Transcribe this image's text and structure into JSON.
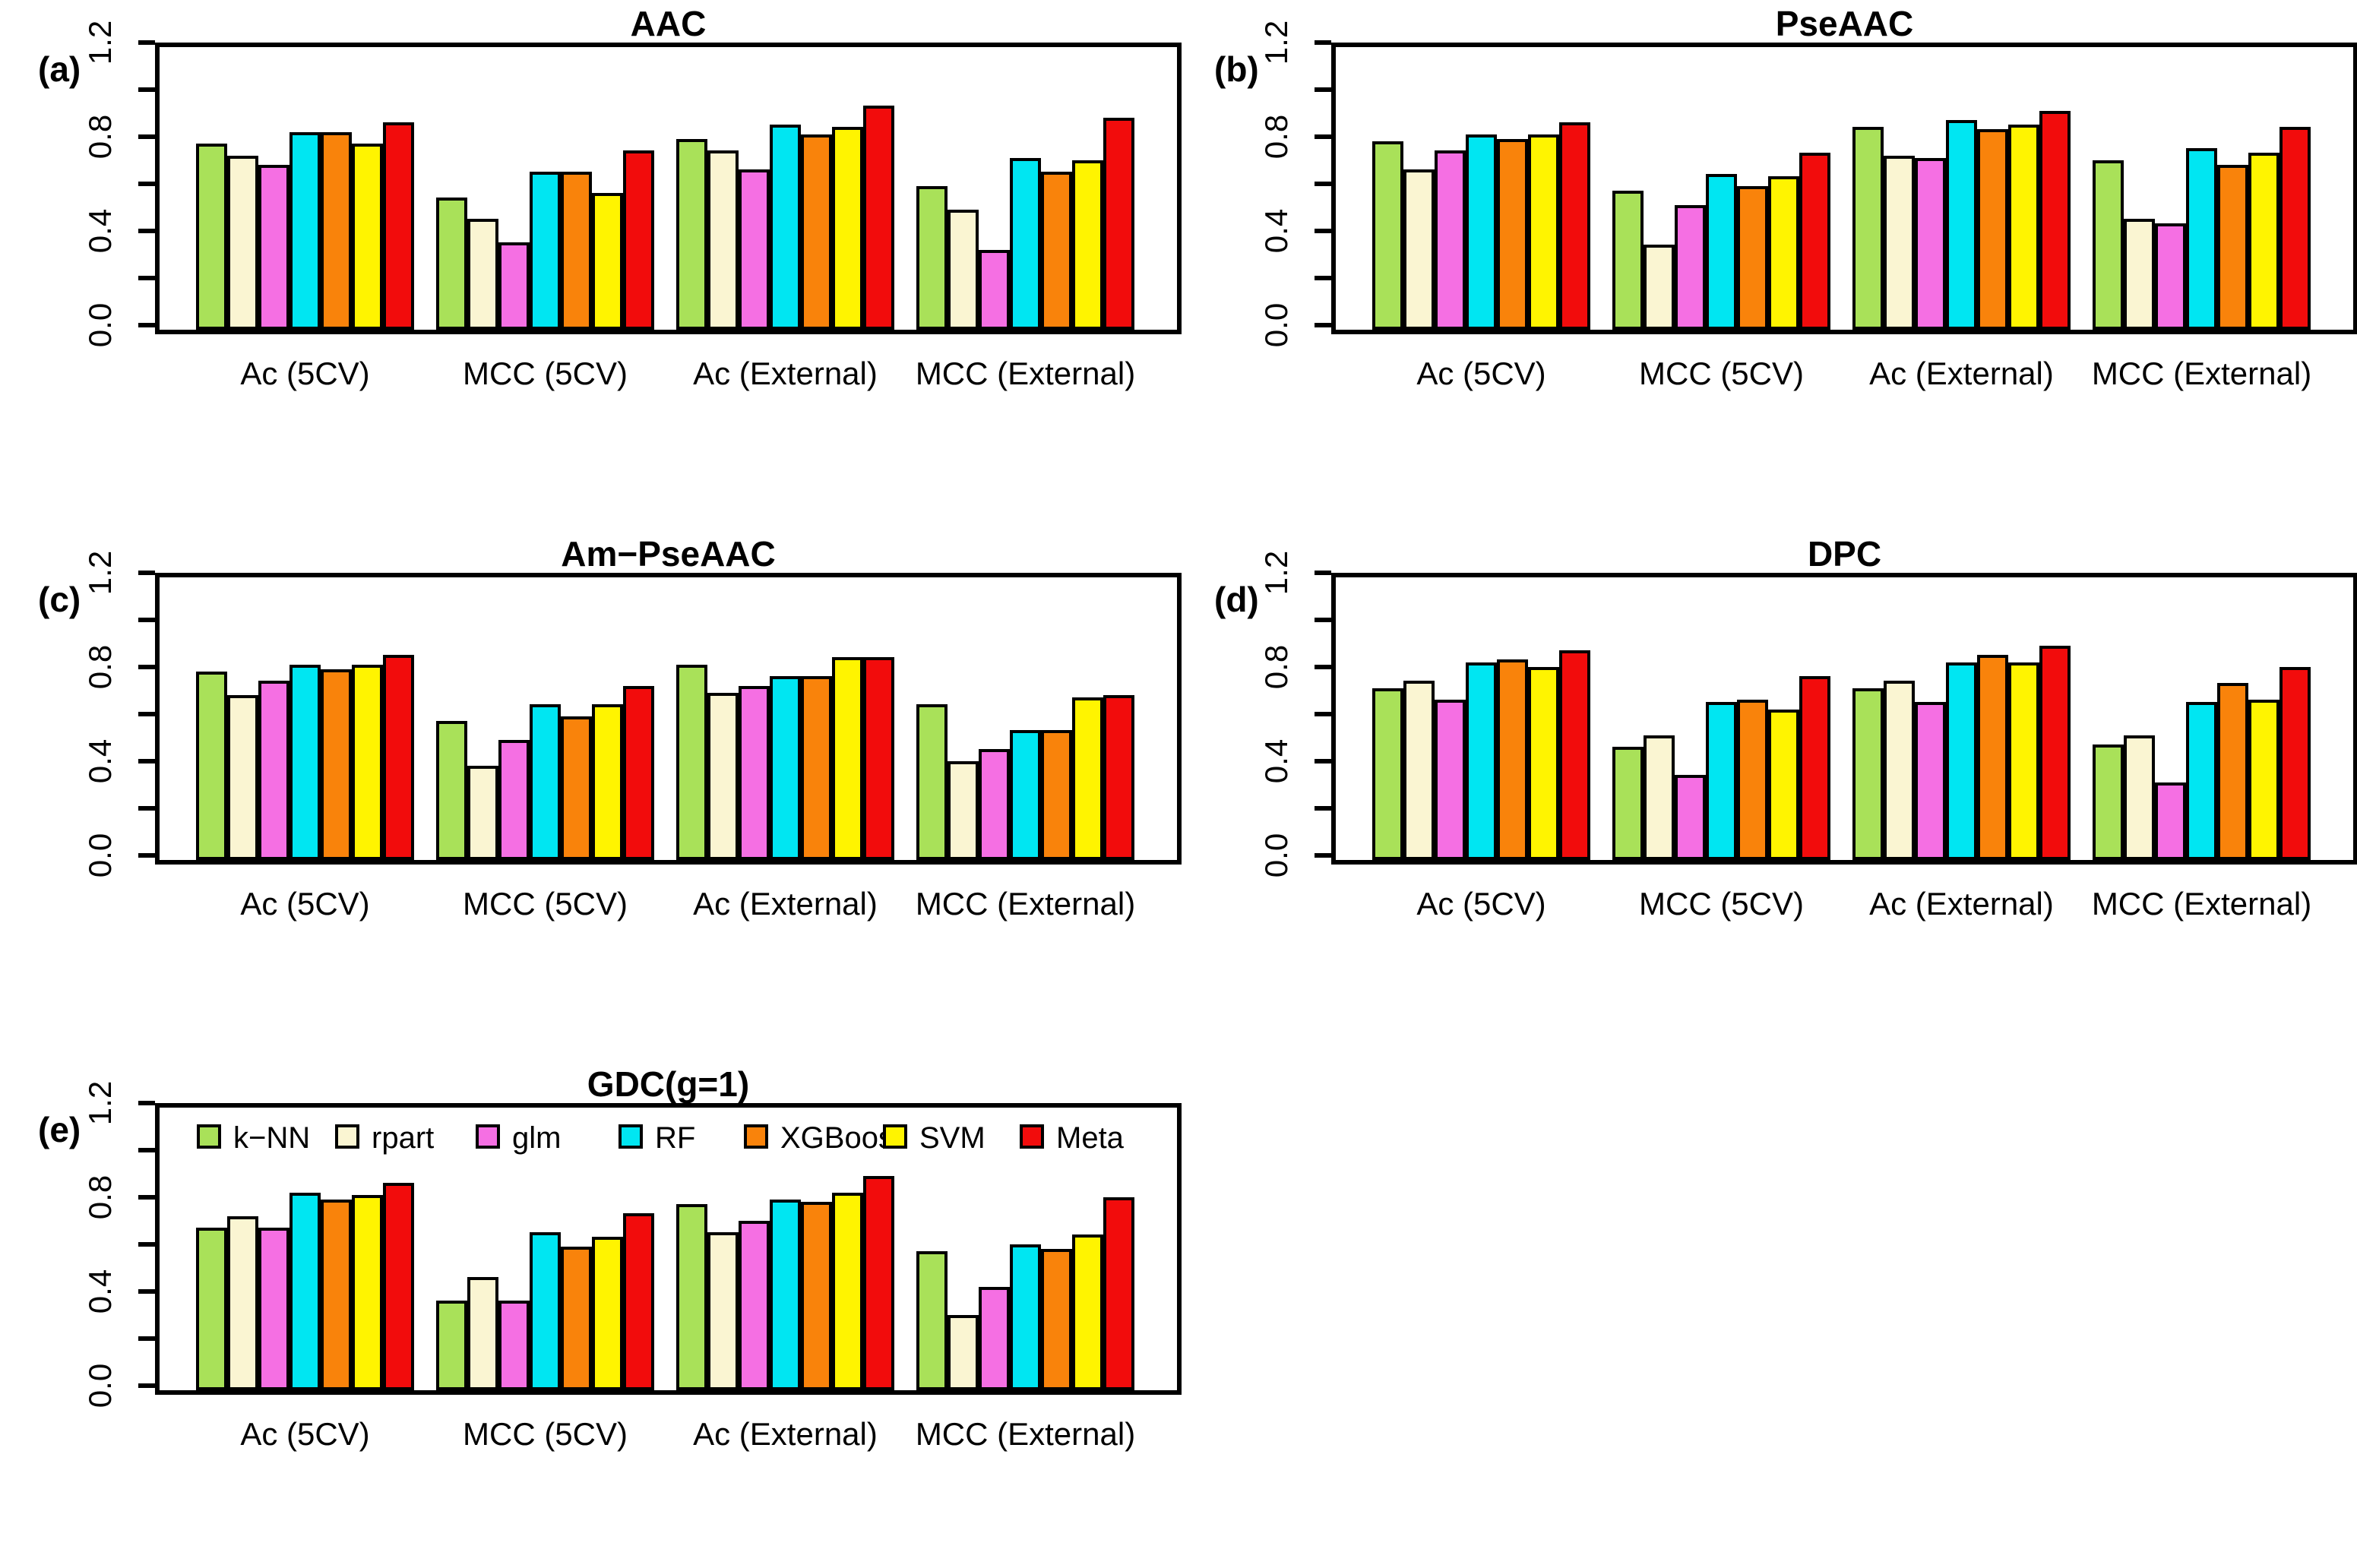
{
  "page": {
    "background": "#ffffff"
  },
  "legend": {
    "entries": [
      {
        "label": "k−NN",
        "color": "#A9E159"
      },
      {
        "label": "rpart",
        "color": "#FAF5D2"
      },
      {
        "label": "glm",
        "color": "#F56FE3"
      },
      {
        "label": "RF",
        "color": "#00E6F2"
      },
      {
        "label": "XGBoost",
        "color": "#F9830B"
      },
      {
        "label": "SVM",
        "color": "#FFF400"
      },
      {
        "label": "Meta",
        "color": "#F20C0C"
      }
    ]
  },
  "chart_data": [
    {
      "type": "bar",
      "panel_label": "(a)",
      "title": "AAC",
      "categories": [
        "Ac (5CV)",
        "MCC (5CV)",
        "Ac (External)",
        "MCC (External)"
      ],
      "ylim": [
        0,
        1.2
      ],
      "ytick_labels": [
        "0.0",
        "0.4",
        "0.8",
        "1.2"
      ],
      "grid": false,
      "legend": false,
      "series": [
        {
          "name": "k-NN",
          "color": "#A9E159",
          "values": [
            0.79,
            0.56,
            0.81,
            0.61
          ]
        },
        {
          "name": "rpart",
          "color": "#FAF5D2",
          "values": [
            0.74,
            0.47,
            0.76,
            0.51
          ]
        },
        {
          "name": "glm",
          "color": "#F56FE3",
          "values": [
            0.7,
            0.37,
            0.68,
            0.34
          ]
        },
        {
          "name": "RF",
          "color": "#00E6F2",
          "values": [
            0.84,
            0.67,
            0.87,
            0.73
          ]
        },
        {
          "name": "XGBoost",
          "color": "#F9830B",
          "values": [
            0.84,
            0.67,
            0.83,
            0.67
          ]
        },
        {
          "name": "SVM",
          "color": "#FFF400",
          "values": [
            0.79,
            0.58,
            0.86,
            0.72
          ]
        },
        {
          "name": "Meta",
          "color": "#F20C0C",
          "values": [
            0.88,
            0.76,
            0.95,
            0.9
          ]
        }
      ]
    },
    {
      "type": "bar",
      "panel_label": "(b)",
      "title": "PseAAC",
      "categories": [
        "Ac (5CV)",
        "MCC (5CV)",
        "Ac (External)",
        "MCC (External)"
      ],
      "ylim": [
        0,
        1.2
      ],
      "ytick_labels": [
        "0.0",
        "0.4",
        "0.8",
        "1.2"
      ],
      "grid": false,
      "legend": false,
      "series": [
        {
          "name": "k-NN",
          "color": "#A9E159",
          "values": [
            0.8,
            0.59,
            0.86,
            0.72
          ]
        },
        {
          "name": "rpart",
          "color": "#FAF5D2",
          "values": [
            0.68,
            0.36,
            0.74,
            0.47
          ]
        },
        {
          "name": "glm",
          "color": "#F56FE3",
          "values": [
            0.76,
            0.53,
            0.73,
            0.45
          ]
        },
        {
          "name": "RF",
          "color": "#00E6F2",
          "values": [
            0.83,
            0.66,
            0.89,
            0.77
          ]
        },
        {
          "name": "XGBoost",
          "color": "#F9830B",
          "values": [
            0.81,
            0.61,
            0.85,
            0.7
          ]
        },
        {
          "name": "SVM",
          "color": "#FFF400",
          "values": [
            0.83,
            0.65,
            0.87,
            0.75
          ]
        },
        {
          "name": "Meta",
          "color": "#F20C0C",
          "values": [
            0.88,
            0.75,
            0.93,
            0.86
          ]
        }
      ]
    },
    {
      "type": "bar",
      "panel_label": "(c)",
      "title": "Am−PseAAC",
      "categories": [
        "Ac (5CV)",
        "MCC (5CV)",
        "Ac (External)",
        "MCC (External)"
      ],
      "ylim": [
        0,
        1.2
      ],
      "ytick_labels": [
        "0.0",
        "0.4",
        "0.8",
        "1.2"
      ],
      "grid": false,
      "legend": false,
      "series": [
        {
          "name": "k-NN",
          "color": "#A9E159",
          "values": [
            0.8,
            0.59,
            0.83,
            0.66
          ]
        },
        {
          "name": "rpart",
          "color": "#FAF5D2",
          "values": [
            0.7,
            0.4,
            0.71,
            0.42
          ]
        },
        {
          "name": "glm",
          "color": "#F56FE3",
          "values": [
            0.76,
            0.51,
            0.74,
            0.47
          ]
        },
        {
          "name": "RF",
          "color": "#00E6F2",
          "values": [
            0.83,
            0.66,
            0.78,
            0.55
          ]
        },
        {
          "name": "XGBoost",
          "color": "#F9830B",
          "values": [
            0.81,
            0.61,
            0.78,
            0.55
          ]
        },
        {
          "name": "SVM",
          "color": "#FFF400",
          "values": [
            0.83,
            0.66,
            0.86,
            0.69
          ]
        },
        {
          "name": "Meta",
          "color": "#F20C0C",
          "values": [
            0.87,
            0.74,
            0.86,
            0.7
          ]
        }
      ]
    },
    {
      "type": "bar",
      "panel_label": "(d)",
      "title": "DPC",
      "categories": [
        "Ac (5CV)",
        "MCC (5CV)",
        "Ac (External)",
        "MCC (External)"
      ],
      "ylim": [
        0,
        1.2
      ],
      "ytick_labels": [
        "0.0",
        "0.4",
        "0.8",
        "1.2"
      ],
      "grid": false,
      "legend": false,
      "series": [
        {
          "name": "k-NN",
          "color": "#A9E159",
          "values": [
            0.73,
            0.48,
            0.73,
            0.49
          ]
        },
        {
          "name": "rpart",
          "color": "#FAF5D2",
          "values": [
            0.76,
            0.53,
            0.76,
            0.53
          ]
        },
        {
          "name": "glm",
          "color": "#F56FE3",
          "values": [
            0.68,
            0.36,
            0.67,
            0.33
          ]
        },
        {
          "name": "RF",
          "color": "#00E6F2",
          "values": [
            0.84,
            0.67,
            0.84,
            0.67
          ]
        },
        {
          "name": "XGBoost",
          "color": "#F9830B",
          "values": [
            0.85,
            0.68,
            0.87,
            0.75
          ]
        },
        {
          "name": "SVM",
          "color": "#FFF400",
          "values": [
            0.82,
            0.64,
            0.84,
            0.68
          ]
        },
        {
          "name": "Meta",
          "color": "#F20C0C",
          "values": [
            0.89,
            0.78,
            0.91,
            0.82
          ]
        }
      ]
    },
    {
      "type": "bar",
      "panel_label": "(e)",
      "title": "GDC(g=1)",
      "categories": [
        "Ac (5CV)",
        "MCC (5CV)",
        "Ac (External)",
        "MCC (External)"
      ],
      "ylim": [
        0,
        1.2
      ],
      "ytick_labels": [
        "0.0",
        "0.4",
        "0.8",
        "1.2"
      ],
      "grid": false,
      "legend": true,
      "series": [
        {
          "name": "k-NN",
          "color": "#A9E159",
          "values": [
            0.69,
            0.38,
            0.79,
            0.59
          ]
        },
        {
          "name": "rpart",
          "color": "#FAF5D2",
          "values": [
            0.74,
            0.48,
            0.67,
            0.32
          ]
        },
        {
          "name": "glm",
          "color": "#F56FE3",
          "values": [
            0.69,
            0.38,
            0.72,
            0.44
          ]
        },
        {
          "name": "RF",
          "color": "#00E6F2",
          "values": [
            0.84,
            0.67,
            0.81,
            0.62
          ]
        },
        {
          "name": "XGBoost",
          "color": "#F9830B",
          "values": [
            0.81,
            0.61,
            0.8,
            0.6
          ]
        },
        {
          "name": "SVM",
          "color": "#FFF400",
          "values": [
            0.83,
            0.65,
            0.84,
            0.66
          ]
        },
        {
          "name": "Meta",
          "color": "#F20C0C",
          "values": [
            0.88,
            0.75,
            0.91,
            0.82
          ]
        }
      ]
    }
  ]
}
